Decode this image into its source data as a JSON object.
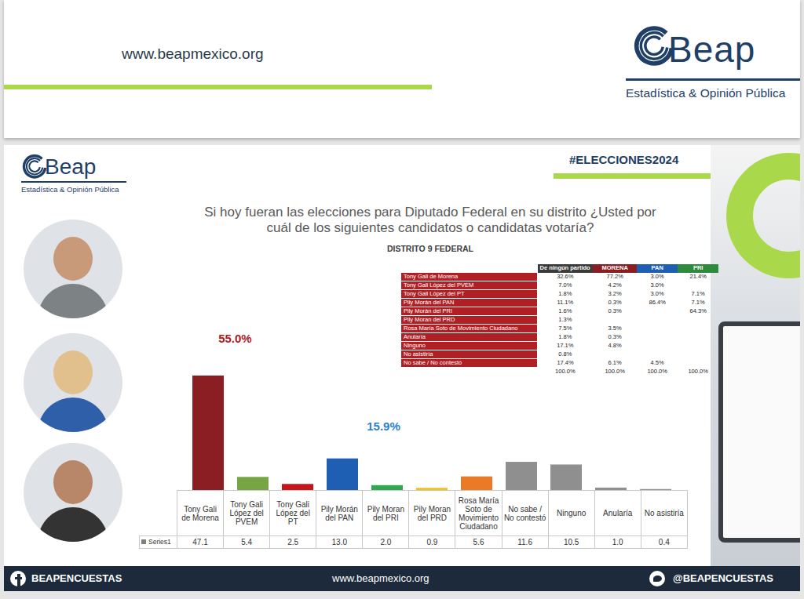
{
  "header": {
    "url": "www.beapmexico.org",
    "logo": "Beap",
    "logo_tagline": "Estadística & Opinión Pública"
  },
  "hashtag": "#ELECCIONES2024",
  "chart_data": {
    "type": "bar",
    "title": "Si hoy fueran las elecciones para Diputado Federal en su distrito ¿Usted por cuál de los siguientes candidatos o candidatas votaría?",
    "subtitle": "DISTRITO 9 FEDERAL",
    "categories": [
      "Tony Gali de Morena",
      "Tony Gali López del PVEM",
      "Tony Gali López del PT",
      "Pily Morán del PAN",
      "Pily Moran del PRI",
      "Pily Moran del PRD",
      "Rosa María Soto de Movimiento Ciudadano",
      "No sabe / No contestó",
      "Ninguno",
      "Anularía",
      "No asistiría"
    ],
    "series": [
      {
        "name": "Series1",
        "color": "#7f7f7f",
        "values": [
          47.1,
          5.4,
          2.5,
          13.0,
          2.0,
          0.9,
          5.6,
          11.6,
          10.5,
          1.0,
          0.4
        ],
        "value_labels": [
          "47.1",
          "5.4",
          "2.5",
          "13.0",
          "2.0",
          "0.9",
          "5.6",
          "11.6",
          "10.5",
          "1.0",
          "0.4"
        ]
      }
    ],
    "colors": [
      "#8b1e22",
      "#77a543",
      "#c8151b",
      "#1e5fb4",
      "#2fa84f",
      "#f2c21b",
      "#ea7a26",
      "#8f8f8f",
      "#8f8f8f",
      "#8f8f8f",
      "#8f8f8f"
    ],
    "ylim": [
      0,
      50
    ],
    "tick_labels": "x",
    "annotations": [
      {
        "text": "55.0%",
        "color": "#b0181e"
      },
      {
        "text": "15.9%",
        "color": "#2a7fd0"
      }
    ]
  },
  "crosstab": {
    "columns": [
      {
        "label": "De ningún partido",
        "color": "#3b3b3b"
      },
      {
        "label": "MORENA",
        "color": "#8b1e22"
      },
      {
        "label": "PAN",
        "color": "#1e5fb4"
      },
      {
        "label": "PRI",
        "color": "#2e8b3e"
      }
    ],
    "rows": [
      {
        "label": "Tony Gali de Morena",
        "cells": [
          "32.6%",
          "77.2%",
          "3.0%",
          "21.4%"
        ]
      },
      {
        "label": "Tony Gali López del PVEM",
        "cells": [
          "7.0%",
          "4.2%",
          "3.0%",
          null
        ]
      },
      {
        "label": "Tony Gali López del PT",
        "cells": [
          "1.8%",
          "3.2%",
          "3.0%",
          "7.1%"
        ]
      },
      {
        "label": "Pily Morán del PAN",
        "cells": [
          "11.1%",
          "0.3%",
          "86.4%",
          "7.1%"
        ]
      },
      {
        "label": "Pily Morán del PRI",
        "cells": [
          "1.6%",
          "0.3%",
          null,
          "64.3%"
        ]
      },
      {
        "label": "Pily Moran del PRD",
        "cells": [
          "1.3%",
          null,
          null,
          null
        ]
      },
      {
        "label": "Rosa María Soto de Movimiento Ciudadano",
        "cells": [
          "7.5%",
          "3.5%",
          null,
          null
        ]
      },
      {
        "label": "Anularía",
        "cells": [
          "1.8%",
          "0.3%",
          null,
          null
        ]
      },
      {
        "label": "Ninguno",
        "cells": [
          "17.1%",
          "4.8%",
          null,
          null
        ]
      },
      {
        "label": "No asistiría",
        "cells": [
          "0.8%",
          null,
          null,
          null
        ]
      },
      {
        "label": "No sabe / No contestó",
        "cells": [
          "17.4%",
          "6.1%",
          "4.5%",
          null
        ]
      },
      {
        "label": null,
        "cells": [
          "100.0%",
          "100.0%",
          "100.0%",
          "100.0%"
        ]
      }
    ]
  },
  "footer": {
    "facebook": "BEAPENCUESTAS",
    "url": "www.beapmexico.org",
    "twitter": "@BEAPENCUESTAS"
  }
}
